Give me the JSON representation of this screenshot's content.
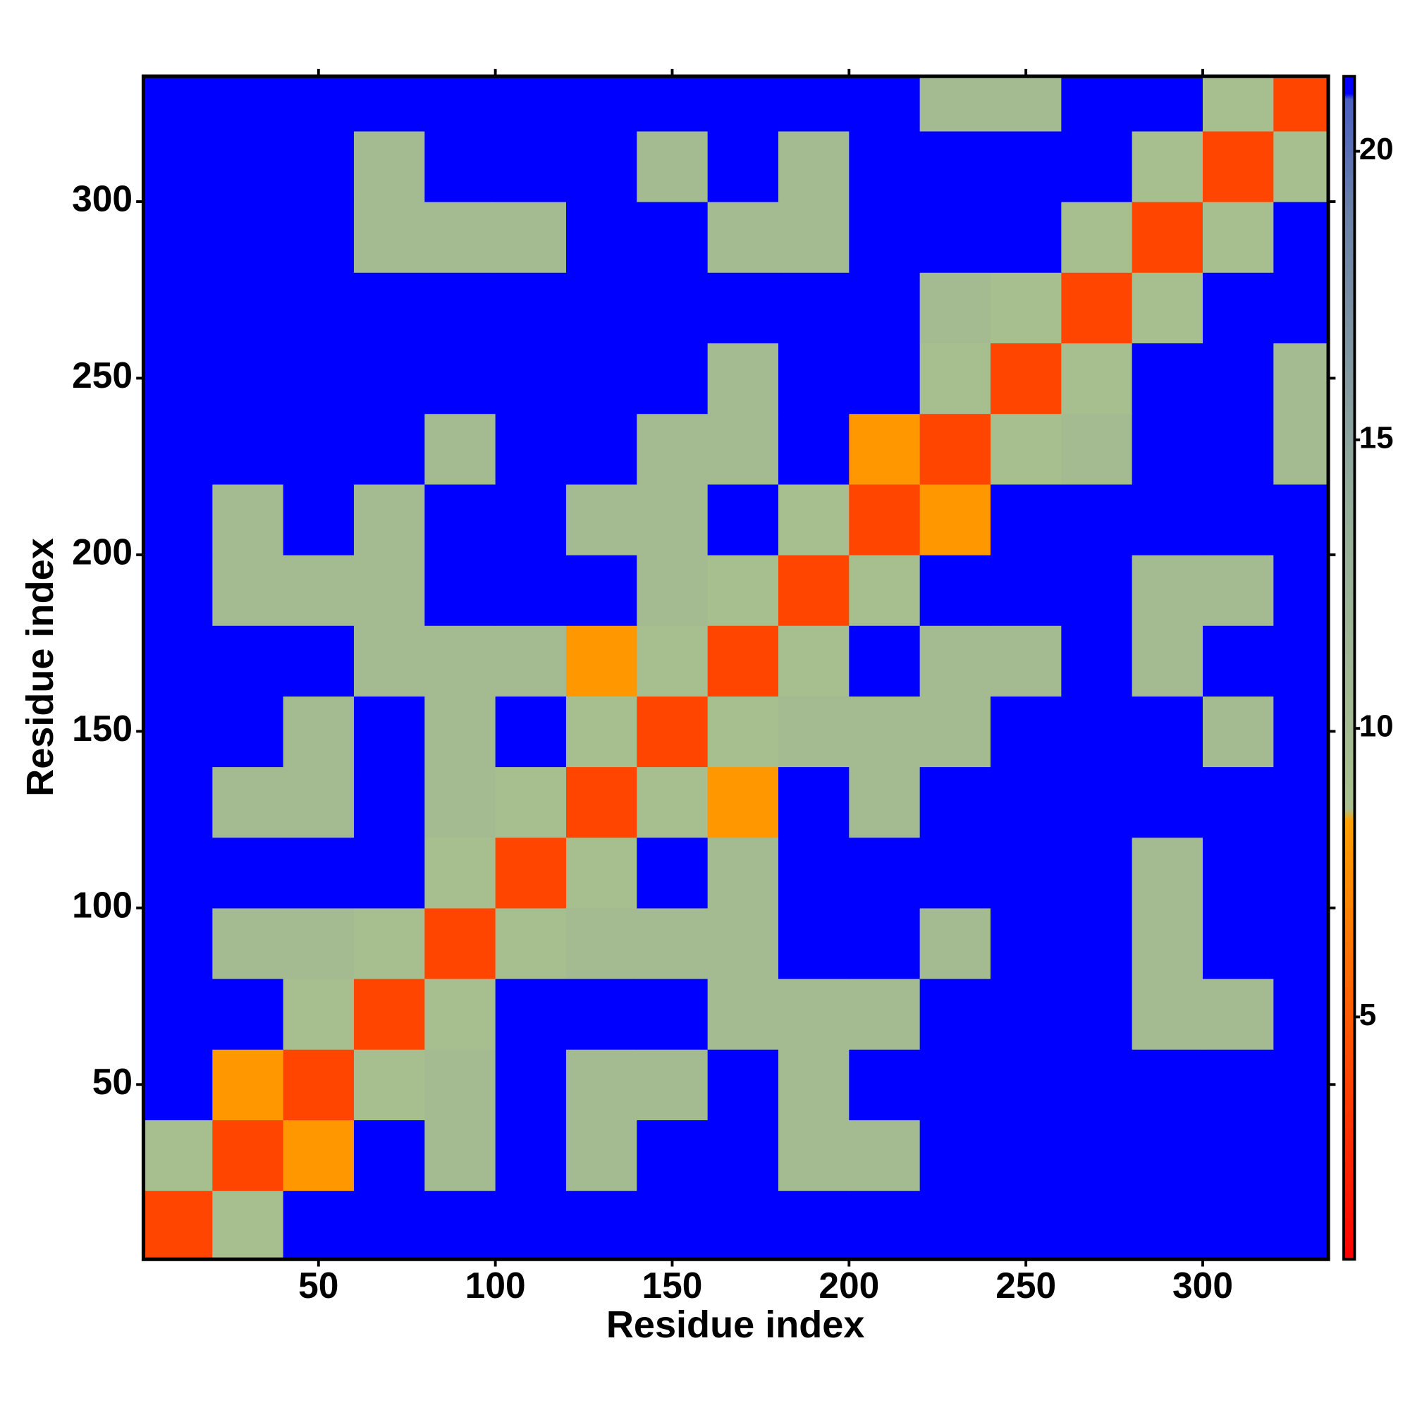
{
  "chart_data": {
    "type": "heatmap",
    "xlabel": "Residue index",
    "ylabel": "Residue index",
    "x": [
      10,
      30,
      50,
      70,
      90,
      110,
      130,
      150,
      170,
      190,
      210,
      230,
      250,
      270,
      290,
      310,
      330
    ],
    "y": [
      10,
      30,
      50,
      70,
      90,
      110,
      130,
      150,
      170,
      190,
      210,
      230,
      250,
      270,
      290,
      310,
      330
    ],
    "z": [
      [
        4,
        9,
        21,
        21,
        21,
        21,
        21,
        21,
        21,
        21,
        21,
        21,
        21,
        21,
        21,
        21,
        21
      ],
      [
        9,
        4,
        8,
        21,
        10,
        21,
        10,
        21,
        21,
        10,
        10,
        21,
        21,
        21,
        21,
        21,
        21
      ],
      [
        21,
        8,
        4,
        9,
        10,
        21,
        10,
        10,
        21,
        10,
        21,
        21,
        21,
        21,
        21,
        21,
        21
      ],
      [
        21,
        21,
        9,
        4,
        9,
        21,
        21,
        21,
        10,
        10,
        10,
        21,
        21,
        21,
        10,
        10,
        21
      ],
      [
        21,
        10,
        10,
        9,
        4,
        9,
        10,
        10,
        10,
        21,
        21,
        10,
        21,
        21,
        10,
        21,
        21
      ],
      [
        21,
        21,
        21,
        21,
        9,
        4,
        9,
        21,
        10,
        21,
        21,
        21,
        21,
        21,
        10,
        21,
        21
      ],
      [
        21,
        10,
        10,
        21,
        10,
        9,
        4,
        9,
        8,
        21,
        10,
        21,
        21,
        21,
        21,
        21,
        21
      ],
      [
        21,
        21,
        10,
        21,
        10,
        21,
        9,
        4,
        9,
        10,
        10,
        10,
        21,
        21,
        21,
        10,
        21
      ],
      [
        21,
        21,
        21,
        10,
        10,
        10,
        8,
        9,
        4,
        9,
        21,
        10,
        10,
        21,
        10,
        21,
        21
      ],
      [
        21,
        10,
        10,
        10,
        21,
        21,
        21,
        10,
        9,
        4,
        9,
        21,
        21,
        21,
        10,
        10,
        21
      ],
      [
        21,
        10,
        21,
        10,
        21,
        21,
        10,
        10,
        21,
        9,
        4,
        8,
        21,
        21,
        21,
        21,
        21
      ],
      [
        21,
        21,
        21,
        21,
        10,
        21,
        21,
        10,
        10,
        21,
        8,
        4,
        9,
        10,
        21,
        21,
        10
      ],
      [
        21,
        21,
        21,
        21,
        21,
        21,
        21,
        21,
        10,
        21,
        21,
        9,
        4,
        9,
        21,
        21,
        10
      ],
      [
        21,
        21,
        21,
        21,
        21,
        21,
        21,
        21,
        21,
        21,
        21,
        10,
        9,
        4,
        9,
        21,
        21
      ],
      [
        21,
        21,
        21,
        10,
        10,
        10,
        21,
        21,
        10,
        10,
        21,
        21,
        21,
        9,
        4,
        9,
        21
      ],
      [
        21,
        21,
        21,
        10,
        21,
        21,
        21,
        10,
        21,
        10,
        21,
        21,
        21,
        21,
        9,
        4,
        9
      ],
      [
        21,
        21,
        21,
        21,
        21,
        21,
        21,
        21,
        21,
        21,
        21,
        10,
        10,
        21,
        21,
        9,
        4
      ]
    ],
    "xlim": [
      0.5,
      335.5
    ],
    "ylim": [
      0.5,
      335.5
    ],
    "xticks": [
      50,
      100,
      150,
      200,
      250,
      300
    ],
    "yticks": [
      50,
      100,
      150,
      200,
      250,
      300
    ],
    "zlim": [
      0.8,
      21.3
    ],
    "colorbar_ticks": [
      5,
      10,
      15,
      20
    ],
    "colorscale": [
      [
        0.8,
        "#ff0000"
      ],
      [
        5,
        "#ff5a00"
      ],
      [
        8.4,
        "#ffa000"
      ],
      [
        8.6,
        "#a9c08e"
      ],
      [
        14,
        "#94ad9a"
      ],
      [
        19,
        "#6a80a8"
      ],
      [
        20.9,
        "#4a60c0"
      ],
      [
        21,
        "#0000ff"
      ]
    ]
  }
}
